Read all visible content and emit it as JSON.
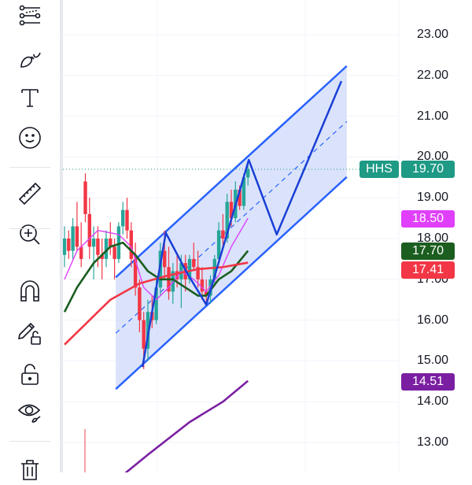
{
  "toolbar": {
    "tools": [
      "lines-icon",
      "brush-icon",
      "text-icon",
      "emoji-icon",
      "ruler-icon",
      "zoom-in-icon",
      "magnet-icon",
      "lock-drawing-icon",
      "unlock-icon",
      "eye-icon",
      "trash-icon"
    ]
  },
  "chart_data": {
    "type": "candlestick",
    "ylim": [
      12.6,
      23.85
    ],
    "y_ticks": [
      "23.00",
      "22.00",
      "21.00",
      "20.00",
      "19.00",
      "18.00",
      "17.00",
      "16.00",
      "15.00",
      "14.00",
      "13.00"
    ],
    "grid": true,
    "candles": [
      [
        17.6,
        18.3,
        17.3,
        18.0
      ],
      [
        18.0,
        18.2,
        17.5,
        17.7
      ],
      [
        17.7,
        18.5,
        17.5,
        18.3
      ],
      [
        18.3,
        18.9,
        17.7,
        17.8
      ],
      [
        17.8,
        18.4,
        17.3,
        17.5
      ],
      [
        19.4,
        19.6,
        18.4,
        18.6
      ],
      [
        18.6,
        19.0,
        17.5,
        17.8
      ],
      [
        17.8,
        18.3,
        17.0,
        18.0
      ],
      [
        18.0,
        18.3,
        17.3,
        17.6
      ],
      [
        17.6,
        18.0,
        17.0,
        17.5
      ],
      [
        17.5,
        18.2,
        17.3,
        18.0
      ],
      [
        18.0,
        18.4,
        17.6,
        17.8
      ],
      [
        17.8,
        18.0,
        17.0,
        17.5
      ],
      [
        17.5,
        18.4,
        17.4,
        18.3
      ],
      [
        18.3,
        18.9,
        18.1,
        18.7
      ],
      [
        18.7,
        19.0,
        18.0,
        18.2
      ],
      [
        18.2,
        18.4,
        17.3,
        17.5
      ],
      [
        17.5,
        17.9,
        16.6,
        16.8
      ],
      [
        16.8,
        17.0,
        15.7,
        16.0
      ],
      [
        16.0,
        16.2,
        14.8,
        15.3
      ],
      [
        15.3,
        16.5,
        15.0,
        16.2
      ],
      [
        16.2,
        16.6,
        15.8,
        16.0
      ],
      [
        16.0,
        17.0,
        15.9,
        16.8
      ],
      [
        16.8,
        17.9,
        16.6,
        17.7
      ],
      [
        17.7,
        18.2,
        17.0,
        17.3
      ],
      [
        17.3,
        17.8,
        16.5,
        16.7
      ],
      [
        16.7,
        17.4,
        16.4,
        17.2
      ],
      [
        17.2,
        17.6,
        16.8,
        17.0
      ],
      [
        17.0,
        17.6,
        16.3,
        17.4
      ],
      [
        17.4,
        17.6,
        16.7,
        17.0
      ],
      [
        17.0,
        17.6,
        16.9,
        17.5
      ],
      [
        17.5,
        17.9,
        17.2,
        17.3
      ],
      [
        17.3,
        17.7,
        16.8,
        17.0
      ],
      [
        17.0,
        17.3,
        16.5,
        16.7
      ],
      [
        16.7,
        17.0,
        16.4,
        16.6
      ],
      [
        16.6,
        17.1,
        16.4,
        17.0
      ],
      [
        17.0,
        17.6,
        16.9,
        17.5
      ],
      [
        17.5,
        18.4,
        17.4,
        18.2
      ],
      [
        18.2,
        18.6,
        17.8,
        18.0
      ],
      [
        18.0,
        19.1,
        17.9,
        18.9
      ],
      [
        18.9,
        19.2,
        18.3,
        18.5
      ],
      [
        18.5,
        19.4,
        18.4,
        19.2
      ],
      [
        19.2,
        19.3,
        18.7,
        18.8
      ],
      [
        18.8,
        19.6,
        18.7,
        19.5
      ],
      [
        19.5,
        19.9,
        19.3,
        19.7
      ]
    ],
    "moving_averages": [
      {
        "color": "#e040fb",
        "last": "18.50",
        "points": [
          [
            0,
            17.0
          ],
          [
            3,
            17.7
          ],
          [
            8,
            18.2
          ],
          [
            13,
            18.1
          ],
          [
            16,
            17.8
          ],
          [
            19,
            16.8
          ],
          [
            22,
            16.5
          ],
          [
            25,
            16.8
          ],
          [
            28,
            17.2
          ],
          [
            31,
            17.0
          ],
          [
            34,
            16.7
          ],
          [
            37,
            17.1
          ],
          [
            40,
            17.8
          ],
          [
            44,
            18.5
          ]
        ]
      },
      {
        "color": "#1b5e20",
        "last": "17.70",
        "points": [
          [
            0,
            16.2
          ],
          [
            3,
            16.8
          ],
          [
            7,
            17.4
          ],
          [
            11,
            17.8
          ],
          [
            14,
            17.9
          ],
          [
            17,
            17.6
          ],
          [
            20,
            17.2
          ],
          [
            23,
            17.0
          ],
          [
            26,
            17.0
          ],
          [
            29,
            16.8
          ],
          [
            32,
            16.6
          ],
          [
            34,
            16.6
          ],
          [
            37,
            17.0
          ],
          [
            40,
            17.2
          ],
          [
            44,
            17.7
          ]
        ]
      },
      {
        "color": "#f23645",
        "last": "17.41",
        "points": [
          [
            0,
            15.4
          ],
          [
            5,
            15.9
          ],
          [
            11,
            16.5
          ],
          [
            18,
            16.9
          ],
          [
            25,
            17.1
          ],
          [
            32,
            17.25
          ],
          [
            38,
            17.3
          ],
          [
            44,
            17.41
          ]
        ]
      },
      {
        "color": "#7b1fa2",
        "last": "14.51",
        "points": [
          [
            14,
            12.2
          ],
          [
            20,
            12.7
          ],
          [
            30,
            13.5
          ],
          [
            38,
            14.0
          ],
          [
            44,
            14.51
          ]
        ]
      }
    ],
    "channel": {
      "start": [
        12.3,
        17.05
      ],
      "end": [
        67.7,
        22.23
      ],
      "lower_start": 14.31,
      "lower_end": 19.51
    },
    "zigzag": [
      [
        18.7,
        14.85
      ],
      [
        24.3,
        18.14
      ],
      [
        29.2,
        17.19
      ],
      [
        34,
        16.38
      ],
      [
        44.2,
        19.93
      ],
      [
        50.9,
        18.1
      ],
      [
        66.4,
        21.86
      ]
    ],
    "symbol": "HHS",
    "last_price": "19.70",
    "colors": {
      "up": "#26a69a",
      "down": "#f23645",
      "pattern": "#2962ff",
      "channel_fill": "#d6e0fb",
      "last_tag": "#1e9a85"
    }
  }
}
